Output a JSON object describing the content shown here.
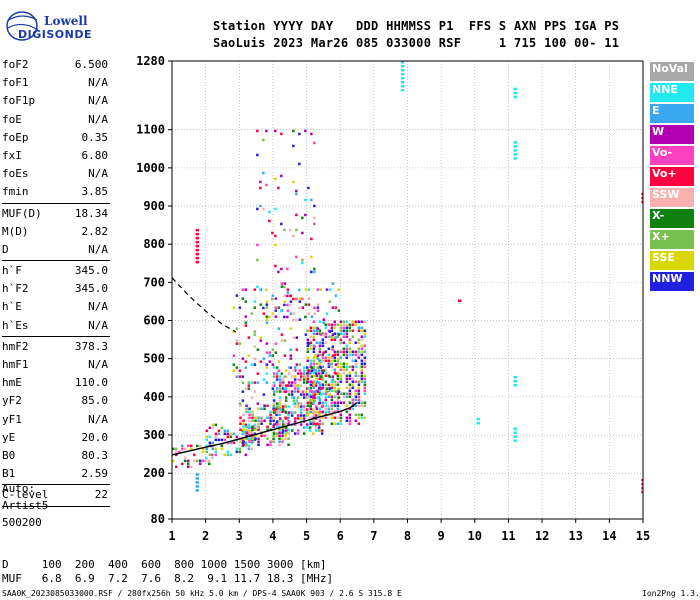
{
  "logo": {
    "line1": "Lowell",
    "line2": "DIGISONDE"
  },
  "header": {
    "line1": "Station YYYY DAY   DDD HHMMSS P1  FFS S AXN PPS IGA PS",
    "line2": "SaoLuis 2023 Mar26 085 033000 RSF     1 715 100 00- 11"
  },
  "params": [
    {
      "name": "foF2",
      "value": "6.500"
    },
    {
      "name": "foF1",
      "value": "N/A"
    },
    {
      "name": "foF1p",
      "value": "N/A"
    },
    {
      "name": "foE",
      "value": "N/A"
    },
    {
      "name": "foEp",
      "value": "0.35"
    },
    {
      "name": "fxI",
      "value": "6.80"
    },
    {
      "name": "foEs",
      "value": "N/A"
    },
    {
      "name": "fmin",
      "value": "3.85"
    },
    {
      "sep": true
    },
    {
      "name": "MUF(D)",
      "value": "18.34"
    },
    {
      "name": "M(D)",
      "value": "2.82"
    },
    {
      "name": "D",
      "value": "N/A"
    },
    {
      "sep": true
    },
    {
      "name": "h`F",
      "value": "345.0"
    },
    {
      "name": "h`F2",
      "value": "345.0"
    },
    {
      "name": "h`E",
      "value": "N/A"
    },
    {
      "name": "h`Es",
      "value": "N/A"
    },
    {
      "sep": true
    },
    {
      "name": "hmF2",
      "value": "378.3"
    },
    {
      "name": "hmF1",
      "value": "N/A"
    },
    {
      "name": "hmE",
      "value": "110.0"
    },
    {
      "name": "yF2",
      "value": "85.0"
    },
    {
      "name": "yF1",
      "value": "N/A"
    },
    {
      "name": "yE",
      "value": "20.0"
    },
    {
      "name": "B0",
      "value": "80.3"
    },
    {
      "name": "B1",
      "value": "2.59"
    },
    {
      "sep": true
    },
    {
      "name": "C-level",
      "value": "22"
    },
    {
      "sep": true
    }
  ],
  "autoscale": [
    "Auto:",
    "Artist5",
    "500200"
  ],
  "legend": [
    {
      "label": "NoVal",
      "color": "#a8a8a8"
    },
    {
      "label": "NNE",
      "color": "#22e8f0"
    },
    {
      "label": "E",
      "color": "#3aa8f0"
    },
    {
      "label": "W",
      "color": "#b000b0"
    },
    {
      "label": "Vo-",
      "color": "#ff40c0"
    },
    {
      "label": "Vo+",
      "color": "#ff0040"
    },
    {
      "label": "SSW",
      "color": "#f8b0b0"
    },
    {
      "label": "X-",
      "color": "#108010"
    },
    {
      "label": "X+",
      "color": "#78c050"
    },
    {
      "label": "SSE",
      "color": "#d8d800"
    },
    {
      "label": "NNW",
      "color": "#2020e0"
    }
  ],
  "muf_table": {
    "d_line": "D     100  200  400  600  800 1000 1500 3000 [km]",
    "muf_line": "MUF   6.8  6.9  7.2  7.6  8.2  9.1 11.7 18.3 [MHz]"
  },
  "footer": {
    "left": "SAA0K_2023085033000.RSF / 280fx256h 50 kHz 5.0 km / DPS-4 SAA0K 903 / 2.6 S 315.8 E",
    "right": "Ion2Png 1.3.17"
  },
  "chart_data": {
    "type": "scatter",
    "title": "",
    "xlabel": "",
    "ylabel": "",
    "xlim": [
      1,
      15
    ],
    "ylim": [
      80,
      1280
    ],
    "x_ticks": [
      1,
      2,
      3,
      4,
      5,
      6,
      7,
      8,
      9,
      10,
      11,
      12,
      13,
      14,
      15
    ],
    "y_ticks": [
      80,
      200,
      300,
      400,
      500,
      600,
      700,
      800,
      900,
      1000,
      1100,
      1280
    ],
    "grid": true,
    "trace_solid": [
      [
        1.0,
        248
      ],
      [
        1.5,
        258
      ],
      [
        2.0,
        268
      ],
      [
        2.5,
        278
      ],
      [
        3.0,
        290
      ],
      [
        3.5,
        302
      ],
      [
        4.0,
        314
      ],
      [
        4.5,
        326
      ],
      [
        5.0,
        338
      ],
      [
        5.5,
        350
      ],
      [
        6.0,
        362
      ],
      [
        6.3,
        372
      ],
      [
        6.5,
        385
      ]
    ],
    "trace_dashed": [
      [
        1.0,
        712
      ],
      [
        1.5,
        665
      ],
      [
        2.0,
        625
      ],
      [
        2.5,
        590
      ],
      [
        2.9,
        570
      ]
    ],
    "echo_clusters": [
      {
        "x": [
          1.0,
          2.2
        ],
        "y": [
          215,
          275
        ],
        "density": 0.35
      },
      {
        "x": [
          2.0,
          3.5
        ],
        "y": [
          250,
          330
        ],
        "density": 0.45
      },
      {
        "x": [
          3.0,
          4.5
        ],
        "y": [
          270,
          380
        ],
        "density": 0.55
      },
      {
        "x": [
          4.0,
          5.5
        ],
        "y": [
          300,
          480
        ],
        "density": 0.55
      },
      {
        "x": [
          5.0,
          6.7
        ],
        "y": [
          330,
          600
        ],
        "density": 0.6
      },
      {
        "x": [
          2.8,
          6.0
        ],
        "y": [
          380,
          700
        ],
        "density": 0.15
      },
      {
        "x": [
          3.5,
          5.2
        ],
        "y": [
          600,
          1100
        ],
        "density": 0.05
      }
    ],
    "isolated_echoes": [
      {
        "x": [
          7.8,
          7.9
        ],
        "y": [
          1200,
          1280
        ],
        "color": "#22e8f0"
      },
      {
        "x": [
          11.15,
          11.25
        ],
        "y": [
          1180,
          1210
        ],
        "color": "#22e8f0"
      },
      {
        "x": [
          11.15,
          11.25
        ],
        "y": [
          1020,
          1070
        ],
        "color": "#22e8f0"
      },
      {
        "x": [
          11.15,
          11.25
        ],
        "y": [
          430,
          455
        ],
        "color": "#22e8f0"
      },
      {
        "x": [
          11.15,
          11.25
        ],
        "y": [
          285,
          320
        ],
        "color": "#22e8f0"
      },
      {
        "x": [
          10.05,
          10.15
        ],
        "y": [
          330,
          345
        ],
        "color": "#22e8f0"
      },
      {
        "x": [
          14.95,
          15.0
        ],
        "y": [
          150,
          185
        ],
        "color": "#ff0040"
      },
      {
        "x": [
          14.95,
          15.0
        ],
        "y": [
          910,
          935
        ],
        "color": "#ff0040"
      },
      {
        "x": [
          1.7,
          1.8
        ],
        "y": [
          150,
          200
        ],
        "color": "#3aa8f0"
      },
      {
        "x": [
          1.7,
          1.8
        ],
        "y": [
          750,
          840
        ],
        "color": "#ff0040"
      },
      {
        "x": [
          9.5,
          9.6
        ],
        "y": [
          645,
          655
        ],
        "color": "#ff0040"
      }
    ]
  }
}
